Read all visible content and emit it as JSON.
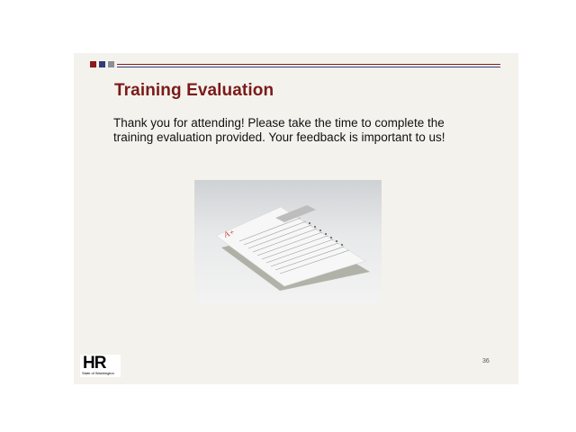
{
  "slide": {
    "title": "Training Evaluation",
    "body_line1": "Thank you for attending! Please take the time to complete the",
    "body_line2": "training evaluation provided. Your feedback is important to us!",
    "slide_number": "36",
    "logo": {
      "letters": "HR",
      "subtitle": "State of Washington"
    },
    "image_icon": "evaluation-form-photo"
  },
  "colors": {
    "brand_red": "#8b1a1a",
    "brand_navy": "#2f3f7a",
    "slide_background": "#f4f2ec"
  }
}
